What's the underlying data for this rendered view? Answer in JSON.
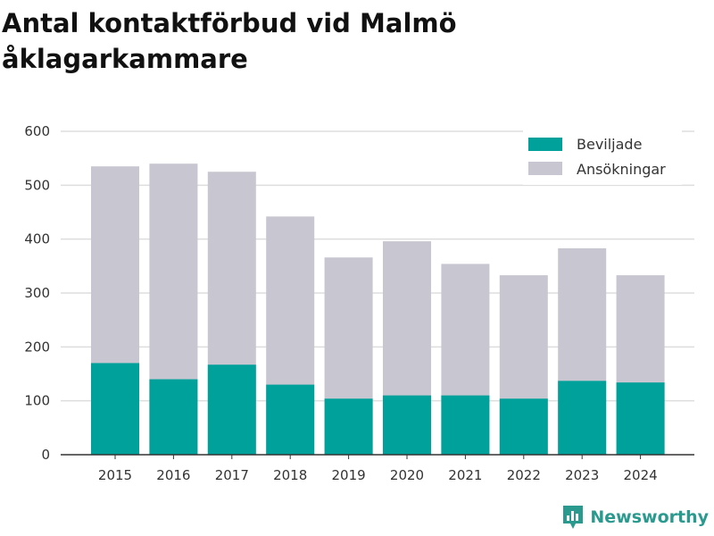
{
  "colors": {
    "approved": "#00a19a",
    "applications": "#c8c7d1",
    "brand": "#2a9a8f",
    "grid": "#dddddd",
    "axis": "#333333"
  },
  "brand": {
    "name": "Newsworthy",
    "icon": "bar-chart-badge-icon"
  },
  "chart_data": {
    "type": "bar",
    "stacked": false,
    "overlay": true,
    "title": "Antal kontaktförbud vid Malmö åklagarkammare",
    "xlabel": "",
    "ylabel": "",
    "categories": [
      "2015",
      "2016",
      "2017",
      "2018",
      "2019",
      "2020",
      "2021",
      "2022",
      "2023",
      "2024"
    ],
    "series": [
      {
        "name": "Ansökningar",
        "values": [
          535,
          540,
          525,
          442,
          366,
          396,
          354,
          333,
          383,
          333
        ]
      },
      {
        "name": "Beviljade",
        "values": [
          170,
          140,
          167,
          130,
          104,
          110,
          110,
          104,
          137,
          134
        ]
      }
    ],
    "legend": [
      "Beviljade",
      "Ansökningar"
    ],
    "ylim": [
      0,
      600
    ],
    "yticks": [
      0,
      100,
      200,
      300,
      400,
      500,
      600
    ],
    "grid": true,
    "legend_position": "top-right"
  }
}
